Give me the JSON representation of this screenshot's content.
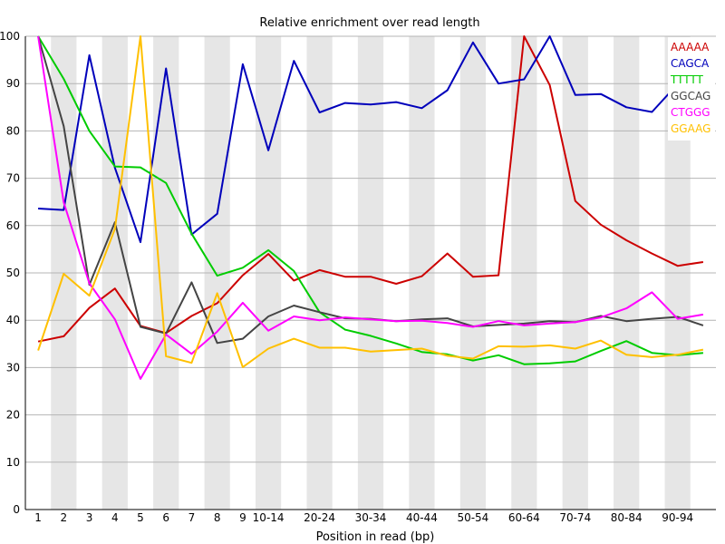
{
  "chart_data": {
    "type": "line",
    "title": "Relative enrichment over read length",
    "xlabel": "Position in read (bp)",
    "ylabel": "",
    "ylim": [
      0,
      100
    ],
    "yticks": [
      0,
      10,
      20,
      30,
      40,
      50,
      60,
      70,
      80,
      90,
      100
    ],
    "grid": "alternating vertical bands",
    "legend_position": "top-right",
    "categories": [
      "1",
      "2",
      "3",
      "4",
      "5",
      "6",
      "7",
      "8",
      "9",
      "10-14",
      "15-19",
      "20-24",
      "25-29",
      "30-34",
      "35-39",
      "40-44",
      "45-49",
      "50-54",
      "55-59",
      "60-64",
      "65-69",
      "70-74",
      "75-79",
      "80-84",
      "85-89",
      "90-94",
      "95-98"
    ],
    "tick_labels": [
      "1",
      "2",
      "3",
      "4",
      "5",
      "6",
      "7",
      "8",
      "9",
      "10-14",
      "",
      "20-24",
      "",
      "30-34",
      "",
      "40-44",
      "",
      "50-54",
      "",
      "60-64",
      "",
      "70-74",
      "",
      "80-84",
      "",
      "90-94",
      ""
    ],
    "series": [
      {
        "name": "AAAAA",
        "color": "#cc0000",
        "values": [
          35.5,
          36.6,
          42.6,
          46.7,
          38.8,
          37.3,
          40.9,
          43.6,
          49.5,
          54.0,
          48.4,
          50.6,
          49.2,
          49.2,
          47.7,
          49.3,
          54.1,
          49.2,
          49.5,
          100,
          89.7,
          65.2,
          60.2,
          56.9,
          54.1,
          51.5,
          52.3
        ]
      },
      {
        "name": "CAGCA",
        "color": "#0000bb",
        "values": [
          63.6,
          63.3,
          96.0,
          72.2,
          56.5,
          93.2,
          58.1,
          62.5,
          94.1,
          75.9,
          94.8,
          83.9,
          85.9,
          85.6,
          86.1,
          84.8,
          88.6,
          98.7,
          90.0,
          90.9,
          100,
          87.6,
          87.8,
          85.0,
          84.0,
          89.9,
          91.0
        ]
      },
      {
        "name": "TTTTT",
        "color": "#00cc00",
        "values": [
          100,
          91.0,
          80.0,
          72.5,
          72.3,
          69.0,
          58.3,
          49.4,
          51.1,
          54.8,
          50.4,
          41.7,
          38.0,
          36.7,
          35.1,
          33.3,
          32.8,
          31.5,
          32.6,
          30.7,
          30.9,
          31.3,
          33.5,
          35.6,
          33.1,
          32.6,
          33.1
        ]
      },
      {
        "name": "GGCAG",
        "color": "#444444",
        "values": [
          100,
          81.0,
          47.5,
          60.7,
          38.6,
          37.2,
          48.0,
          35.2,
          36.1,
          40.8,
          43.1,
          41.7,
          40.4,
          40.3,
          39.8,
          40.2,
          40.4,
          38.7,
          39.0,
          39.3,
          39.8,
          39.6,
          40.9,
          39.8,
          40.3,
          40.7,
          38.9
        ]
      },
      {
        "name": "CTGGG",
        "color": "#ff00ff",
        "values": [
          100,
          64.9,
          47.8,
          40.2,
          27.6,
          37.0,
          32.9,
          37.6,
          43.7,
          37.8,
          40.8,
          40.0,
          40.6,
          40.2,
          39.8,
          39.9,
          39.4,
          38.6,
          39.8,
          38.9,
          39.3,
          39.6,
          40.6,
          42.5,
          45.9,
          40.3,
          41.2
        ]
      },
      {
        "name": "GGAAG",
        "color": "#ffc000",
        "values": [
          33.6,
          49.8,
          45.2,
          59.3,
          100,
          32.4,
          31.0,
          45.7,
          30.1,
          34.0,
          36.1,
          34.2,
          34.2,
          33.4,
          33.7,
          34.0,
          32.5,
          31.9,
          34.5,
          34.4,
          34.7,
          34.0,
          35.7,
          32.7,
          32.2,
          32.7,
          33.8
        ]
      }
    ]
  }
}
